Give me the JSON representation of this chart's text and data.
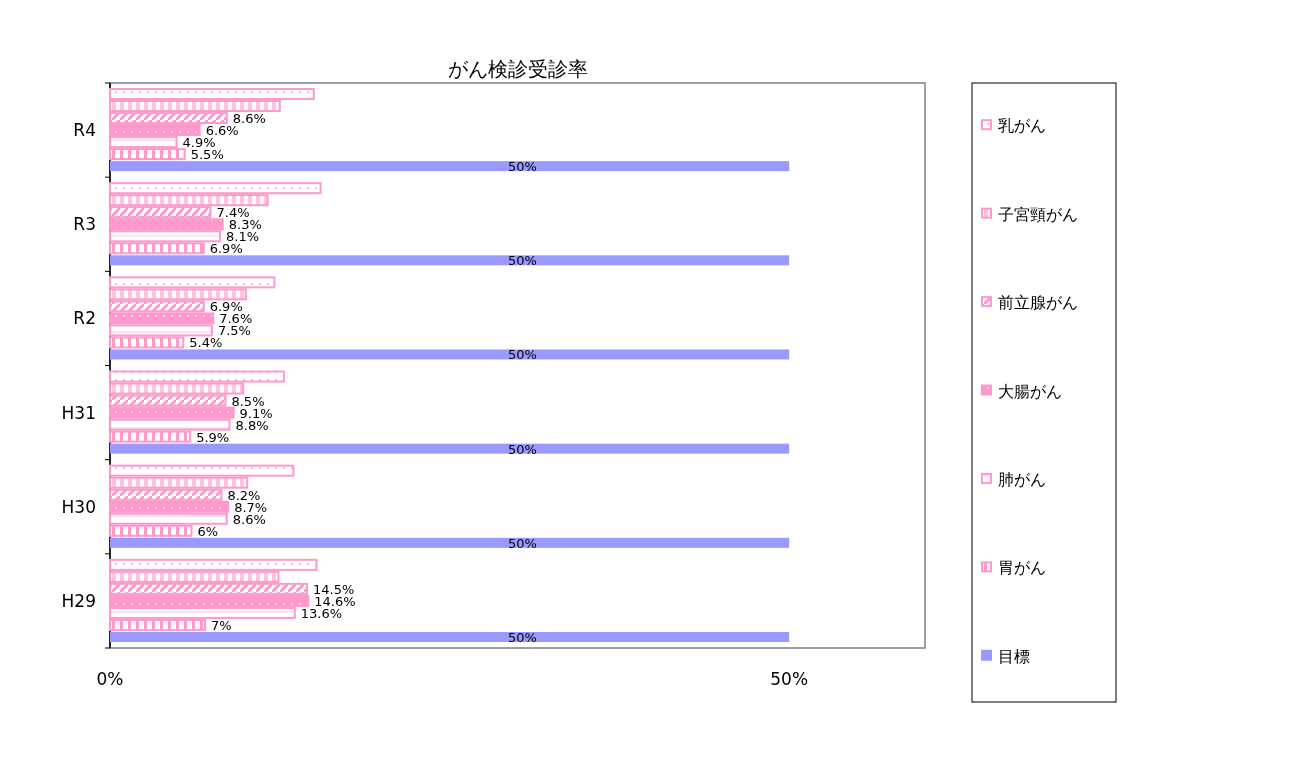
{
  "chart_data": {
    "type": "bar",
    "orientation": "horizontal",
    "title": "がん検診受診率",
    "categories": [
      "R4",
      "R3",
      "R2",
      "H31",
      "H30",
      "H29"
    ],
    "xlim": [
      0,
      60
    ],
    "xticks": [
      {
        "value": 0,
        "label": "0%"
      },
      {
        "value": 50,
        "label": "50%"
      }
    ],
    "legend": "right",
    "grid": false,
    "series": [
      {
        "name": "乳がん",
        "color": "#ff99cc",
        "values": [
          15.0,
          15.5,
          12.1,
          12.8,
          13.5,
          15.2
        ]
      },
      {
        "name": "子宮頸がん",
        "color": "#ff99cc",
        "values": [
          12.5,
          11.6,
          10.0,
          9.8,
          10.1,
          12.4
        ]
      },
      {
        "name": "前立腺がん",
        "color": "#ff99cc",
        "values": [
          8.6,
          7.4,
          6.9,
          8.5,
          8.2,
          14.5
        ],
        "value_labels": [
          "8.6%",
          "7.4%",
          "6.9%",
          "8.5%",
          "8.2%",
          "14.5%"
        ]
      },
      {
        "name": "大腸がん",
        "color": "#ff99cc",
        "values": [
          6.6,
          8.3,
          7.6,
          9.1,
          8.7,
          14.6
        ],
        "value_labels": [
          "6.6%",
          "8.3%",
          "7.6%",
          "9.1%",
          "8.7%",
          "14.6%"
        ]
      },
      {
        "name": "肺がん",
        "color": "#ff99cc",
        "values": [
          4.9,
          8.1,
          7.5,
          8.8,
          8.6,
          13.6
        ],
        "value_labels": [
          "4.9%",
          "8.1%",
          "7.5%",
          "8.8%",
          "8.6%",
          "13.6%"
        ]
      },
      {
        "name": "胃がん",
        "color": "#ff99cc",
        "values": [
          5.5,
          6.9,
          5.4,
          5.9,
          6,
          7
        ],
        "value_labels": [
          "5.5%",
          "6.9%",
          "5.4%",
          "5.9%",
          "6%",
          "7%"
        ]
      },
      {
        "name": "目標",
        "color": "#9999ff",
        "values": [
          50,
          50,
          50,
          50,
          50,
          50
        ],
        "value_labels": [
          "50%",
          "50%",
          "50%",
          "50%",
          "50%",
          "50%"
        ]
      }
    ]
  }
}
